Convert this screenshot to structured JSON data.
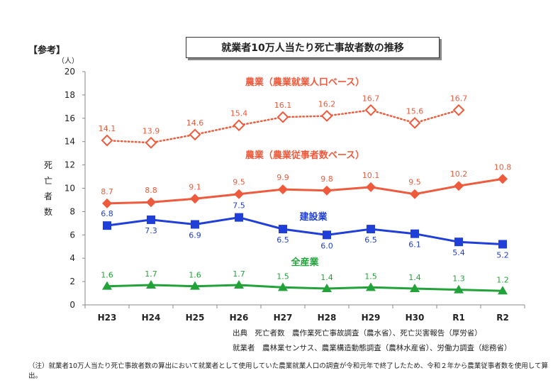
{
  "header": {
    "ref_tag": "【参考】",
    "title": "就業者10万人当たり死亡事故者数の推移"
  },
  "footer": {
    "source_line1": "出典　死亡者数　農作業死亡事故調査（農水省）、死亡災害報告（厚労省）",
    "source_line2": "就業者　農林業センサス、農業構造動態調査（農林水産省）、労働力調査（総務省）",
    "note": "（注）就業者10万人当たり死亡事故者数の算出において就業者として使用していた農業就業人口の調査が令和元年で終了したため、令和２年から農業従事者数を使用して算出。"
  },
  "chart_data": {
    "type": "line",
    "title": "就業者10万人当たり死亡事故者数の推移",
    "ylabel": "死亡者数",
    "yunit": "（人）",
    "ylim": [
      0,
      20
    ],
    "yticks": [
      0,
      2,
      4,
      6,
      8,
      10,
      12,
      14,
      16,
      18,
      20
    ],
    "grid": false,
    "categories": [
      "H23",
      "H24",
      "H25",
      "H26",
      "H27",
      "H28",
      "H29",
      "H30",
      "R1",
      "R2"
    ],
    "series": [
      {
        "name": "農業（農業就業人口ベース）",
        "color": "#ef5a3c",
        "marker": "diamond-open",
        "line": "dotted",
        "values": [
          14.1,
          13.9,
          14.6,
          15.4,
          16.1,
          16.2,
          16.7,
          15.6,
          16.7,
          null
        ],
        "labels": [
          "14.1",
          "13.9",
          "14.6",
          "15.4",
          "16.1",
          "16.2",
          "16.7",
          "15.6",
          "16.7",
          null
        ]
      },
      {
        "name": "農業（農業従事者数ベース）",
        "color": "#ef5a3c",
        "marker": "diamond",
        "line": "solid",
        "values": [
          8.7,
          8.8,
          9.1,
          9.5,
          9.9,
          9.8,
          10.1,
          9.5,
          10.2,
          10.8
        ],
        "labels": [
          "8.7",
          "8.8",
          "9.1",
          "9.5",
          "9.9",
          "9.8",
          "10.1",
          "9.5",
          "10.2",
          "10.8"
        ]
      },
      {
        "name": "建設業",
        "color": "#1f3fd8",
        "marker": "square",
        "line": "solid",
        "values": [
          6.8,
          7.3,
          6.9,
          7.5,
          6.5,
          6.0,
          6.5,
          6.1,
          5.4,
          5.2
        ],
        "labels": [
          "6.8",
          "7.3",
          "6.9",
          "7.5",
          "6.5",
          "6.0",
          "6.5",
          "6.1",
          "5.4",
          "5.2"
        ]
      },
      {
        "name": "全産業",
        "color": "#22a33a",
        "marker": "triangle",
        "line": "solid",
        "values": [
          1.6,
          1.7,
          1.6,
          1.7,
          1.5,
          1.4,
          1.5,
          1.4,
          1.3,
          1.2
        ],
        "labels": [
          "1.6",
          "1.7",
          "1.6",
          "1.7",
          "1.5",
          "1.4",
          "1.5",
          "1.4",
          "1.3",
          "1.2"
        ]
      }
    ]
  }
}
